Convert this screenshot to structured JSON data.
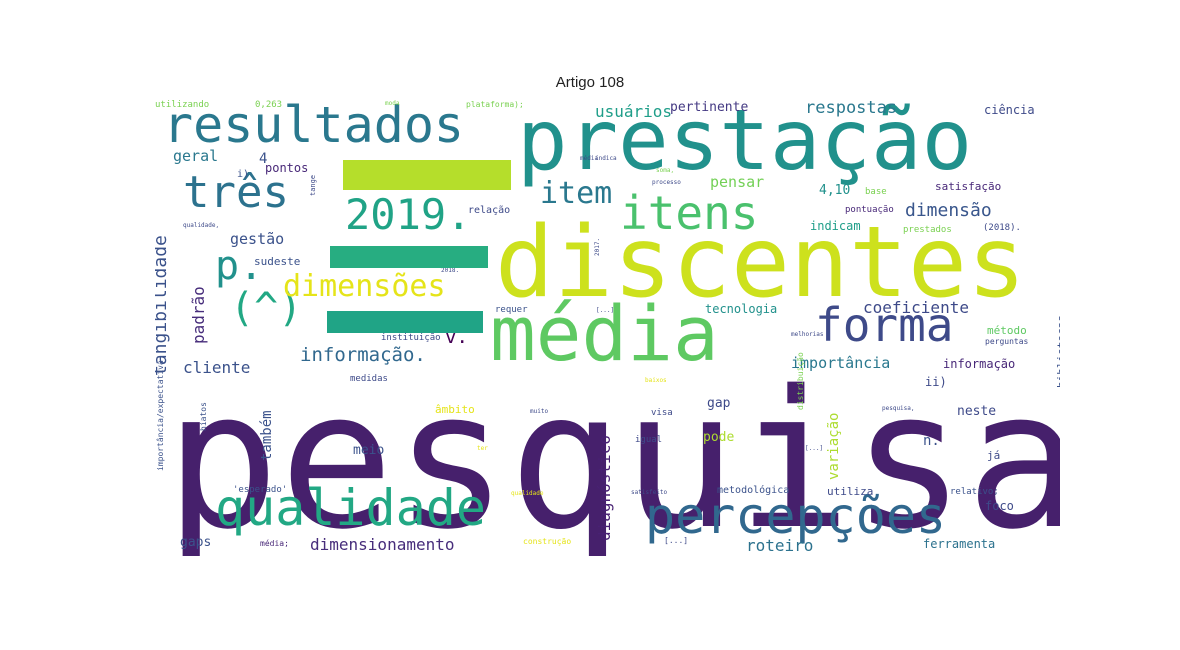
{
  "title": "Artigo 108",
  "chart_data": {
    "type": "wordcloud",
    "colormap": "viridis",
    "words": [
      {
        "text": "pesquisa",
        "weight": 1.0,
        "color": "#46206c"
      },
      {
        "text": "discentes",
        "weight": 0.72,
        "color": "#cde11d"
      },
      {
        "text": "prestação",
        "weight": 0.64,
        "color": "#21918c"
      },
      {
        "text": "média",
        "weight": 0.56,
        "color": "#5ec962"
      },
      {
        "text": "resultados",
        "weight": 0.44,
        "color": "#2a788e"
      },
      {
        "text": "qualidade",
        "weight": 0.44,
        "color": "#22a884"
      },
      {
        "text": "percepções",
        "weight": 0.44,
        "color": "#31688e"
      },
      {
        "text": "itens",
        "weight": 0.42,
        "color": "#4ac16d"
      },
      {
        "text": "forma",
        "weight": 0.42,
        "color": "#3e4a89"
      },
      {
        "text": "três",
        "weight": 0.38,
        "color": "#2c728e"
      },
      {
        "text": "2019.",
        "weight": 0.36,
        "color": "#20a386"
      },
      {
        "text": "p.",
        "weight": 0.32,
        "color": "#21918c"
      },
      {
        "text": "(^)",
        "weight": 0.3,
        "color": "#22a884"
      },
      {
        "text": "dimensões",
        "weight": 0.28,
        "color": "#e5e419"
      },
      {
        "text": "item",
        "weight": 0.24,
        "color": "#2a788e"
      },
      {
        "text": "tangibilidade",
        "weight": 0.17,
        "color": "#3b528b"
      },
      {
        "text": "informação.",
        "weight": 0.16,
        "color": "#31688e"
      },
      {
        "text": "v.",
        "weight": 0.15,
        "color": "#440154"
      },
      {
        "text": "dimensão",
        "weight": 0.14,
        "color": "#39568c"
      },
      {
        "text": "respostas",
        "weight": 0.13,
        "color": "#2a788e"
      },
      {
        "text": "usuários",
        "weight": 0.12,
        "color": "#1f9e89"
      },
      {
        "text": "coeficiente",
        "weight": 0.12,
        "color": "#3e4a89"
      },
      {
        "text": "cliente",
        "weight": 0.12,
        "color": "#3b528b"
      },
      {
        "text": "padrão",
        "weight": 0.12,
        "color": "#472d7b"
      },
      {
        "text": "diagnóstico",
        "weight": 0.12,
        "color": "#482173"
      },
      {
        "text": "dimensionamento",
        "weight": 0.12,
        "color": "#472d7b"
      },
      {
        "text": "roteiro",
        "weight": 0.12,
        "color": "#2c728e"
      },
      {
        "text": "importância",
        "weight": 0.11,
        "color": "#2a788e"
      },
      {
        "text": "também",
        "weight": 0.11,
        "color": "#3b528b"
      },
      {
        "text": "gestão",
        "weight": 0.11,
        "color": "#3b528b"
      },
      {
        "text": "geral",
        "weight": 0.11,
        "color": "#2a788e"
      },
      {
        "text": "pensar",
        "weight": 0.11,
        "color": "#73d056"
      },
      {
        "text": "variação",
        "weight": 0.11,
        "color": "#addc30"
      },
      {
        "text": "pertinente",
        "weight": 0.09,
        "color": "#443983"
      },
      {
        "text": "4",
        "weight": 0.1,
        "color": "#3b528b"
      },
      {
        "text": "4,10",
        "weight": 0.1,
        "color": "#21918c"
      },
      {
        "text": "n.",
        "weight": 0.1,
        "color": "#3b528b"
      },
      {
        "text": "gaps",
        "weight": 0.09,
        "color": "#3b528b"
      },
      {
        "text": "meio",
        "weight": 0.09,
        "color": "#3b528b"
      },
      {
        "text": "gap",
        "weight": 0.09,
        "color": "#3e4a89"
      },
      {
        "text": "pode",
        "weight": 0.09,
        "color": "#addc30"
      },
      {
        "text": "neste",
        "weight": 0.09,
        "color": "#3e4a89"
      },
      {
        "text": "pontos",
        "weight": 0.08,
        "color": "#482878"
      },
      {
        "text": "sudeste",
        "weight": 0.08,
        "color": "#3b528b"
      },
      {
        "text": "informação",
        "weight": 0.08,
        "color": "#482878"
      },
      {
        "text": "tecnologia",
        "weight": 0.08,
        "color": "#21918c"
      },
      {
        "text": "indicam",
        "weight": 0.08,
        "color": "#1f9e89"
      },
      {
        "text": "satisfação",
        "weight": 0.08,
        "color": "#482878"
      },
      {
        "text": "ciência",
        "weight": 0.08,
        "color": "#3e4a89"
      },
      {
        "text": "ferramenta",
        "weight": 0.08,
        "color": "#2c728e"
      },
      {
        "text": "foco",
        "weight": 0.08,
        "color": "#3e4a89"
      },
      {
        "text": "bibliotecas",
        "weight": 0.08,
        "color": "#3b528b"
      },
      {
        "text": "ii)",
        "weight": 0.08,
        "color": "#3e4a89"
      },
      {
        "text": "i)",
        "weight": 0.07,
        "color": "#3b528b"
      },
      {
        "text": "método",
        "weight": 0.07,
        "color": "#5ec962"
      },
      {
        "text": "âmbito",
        "weight": 0.07,
        "color": "#e5e419"
      },
      {
        "text": "utiliza",
        "weight": 0.07,
        "color": "#3e4a89"
      },
      {
        "text": "já",
        "weight": 0.06,
        "color": "#3e4a89"
      },
      {
        "text": "metodológica",
        "weight": 0.06,
        "color": "#3b528b"
      },
      {
        "text": "pontuação",
        "weight": 0.06,
        "color": "#482878"
      },
      {
        "text": "base",
        "weight": 0.06,
        "color": "#7ad151"
      },
      {
        "text": "relação",
        "weight": 0.06,
        "color": "#3e4a89"
      },
      {
        "text": "prestados",
        "weight": 0.06,
        "color": "#7ad151"
      },
      {
        "text": "(2018).",
        "weight": 0.06,
        "color": "#3e4a89"
      },
      {
        "text": "perguntas",
        "weight": 0.05,
        "color": "#3e4a89"
      },
      {
        "text": "instituição",
        "weight": 0.05,
        "color": "#3e4a89"
      },
      {
        "text": "medidas",
        "weight": 0.05,
        "color": "#3e4a89"
      },
      {
        "text": "requer",
        "weight": 0.05,
        "color": "#3b528b"
      },
      {
        "text": "hiatos",
        "weight": 0.05,
        "color": "#3b528b"
      },
      {
        "text": "importância/expectativa",
        "weight": 0.05,
        "color": "#3b528b"
      },
      {
        "text": "'esperado'",
        "weight": 0.05,
        "color": "#3b528b"
      },
      {
        "text": "média;",
        "weight": 0.05,
        "color": "#482878"
      },
      {
        "text": "construção",
        "weight": 0.05,
        "color": "#e5e419"
      },
      {
        "text": "nesse",
        "weight": 0.05,
        "color": "#3e4a89"
      },
      {
        "text": "relativo;",
        "weight": 0.05,
        "color": "#3b528b"
      },
      {
        "text": "distribuição",
        "weight": 0.04,
        "color": "#7ad151"
      },
      {
        "text": "igual",
        "weight": 0.05,
        "color": "#3e4a89"
      },
      {
        "text": "visa",
        "weight": 0.05,
        "color": "#3e4a89"
      },
      {
        "text": "utilizando",
        "weight": 0.05,
        "color": "#7ad151"
      },
      {
        "text": "0,263",
        "weight": 0.05,
        "color": "#7ad151"
      },
      {
        "text": "plataforma);",
        "weight": 0.04,
        "color": "#7ad151"
      },
      {
        "text": "[...]",
        "weight": 0.04,
        "color": "#3e4a89"
      },
      {
        "text": "tange",
        "weight": 0.04,
        "color": "#3e4a89"
      },
      {
        "text": "qualidade,",
        "weight": 0.04,
        "color": "#3e4a89"
      },
      {
        "text": "processo",
        "weight": 0.04,
        "color": "#3e4a89"
      },
      {
        "text": "pesquisa,",
        "weight": 0.04,
        "color": "#3e4a89"
      },
      {
        "text": "satisfeito",
        "weight": 0.04,
        "color": "#3e4a89"
      },
      {
        "text": "melhorias",
        "weight": 0.04,
        "color": "#3e4a89"
      },
      {
        "text": "usuário",
        "weight": 0.04,
        "color": "#3e4a89"
      },
      {
        "text": "moda",
        "weight": 0.04,
        "color": "#7ad151"
      },
      {
        "text": "média",
        "weight": 0.04,
        "color": "#3e4a89"
      },
      {
        "text": "2018.",
        "weight": 0.04,
        "color": "#3e4a89"
      },
      {
        "text": "2017.",
        "weight": 0.04,
        "color": "#3e4a89"
      },
      {
        "text": "soma,",
        "weight": 0.04,
        "color": "#7ad151"
      },
      {
        "text": "baixos",
        "weight": 0.04,
        "color": "#e5e419"
      },
      {
        "text": "muito",
        "weight": 0.04,
        "color": "#3e4a89"
      },
      {
        "text": "[...]",
        "weight": 0.04,
        "color": "#3e4a89"
      },
      {
        "text": "qualidade",
        "weight": 0.04,
        "color": "#e5e419"
      },
      {
        "text": "ter",
        "weight": 0.04,
        "color": "#e5e419"
      },
      {
        "text": "índica",
        "weight": 0.04,
        "color": "#3e4a89"
      },
      {
        "text": "[...]",
        "weight": 0.04,
        "color": "#3e4a89"
      }
    ],
    "shapes": [
      {
        "name": "bar-top",
        "color": "#b5de2b"
      },
      {
        "name": "bar-middle",
        "color": "#27ad81"
      },
      {
        "name": "bar-lower",
        "color": "#20a486"
      }
    ]
  }
}
